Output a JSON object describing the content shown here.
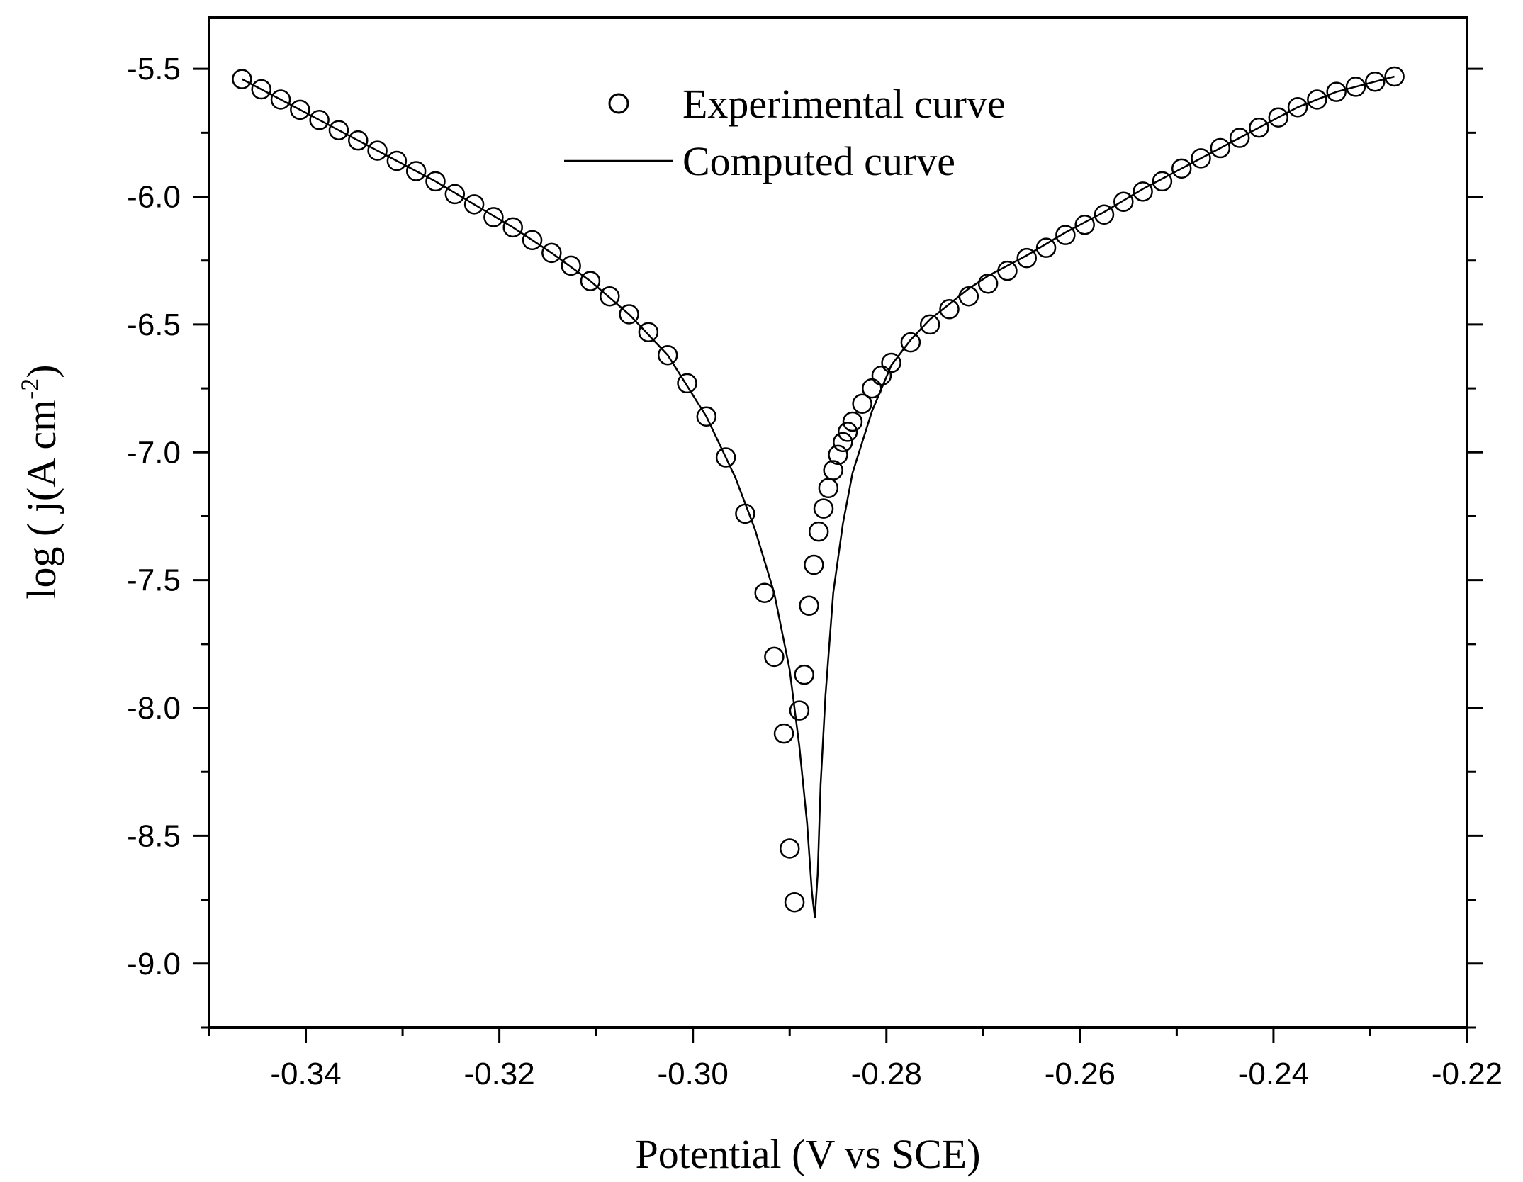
{
  "chart_data": {
    "type": "scatter",
    "title": "",
    "xlabel": "Potential (V vs SCE)",
    "ylabel_main": "log ( j(A cm",
    "ylabel_sup": "-2",
    "ylabel_close": ")",
    "xlim": [
      -0.35,
      -0.22
    ],
    "ylim": [
      -9.25,
      -5.3
    ],
    "x_ticks": [
      -0.34,
      -0.32,
      -0.3,
      -0.28,
      -0.26,
      -0.24,
      -0.22
    ],
    "x_tick_labels": [
      "-0.34",
      "-0.32",
      "-0.30",
      "-0.28",
      "-0.26",
      "-0.24",
      "-0.22"
    ],
    "y_ticks": [
      -5.5,
      -6.0,
      -6.5,
      -7.0,
      -7.5,
      -8.0,
      -8.5,
      -9.0
    ],
    "y_tick_labels": [
      "-5.5",
      "-6.0",
      "-6.5",
      "-7.0",
      "-7.5",
      "-8.0",
      "-8.5",
      "-9.0"
    ],
    "legend_position": "top-center",
    "grid": false,
    "series": [
      {
        "name": "Experimental curve",
        "style": "open-circle",
        "x": [
          -0.3466,
          -0.3446,
          -0.3426,
          -0.3406,
          -0.3386,
          -0.3366,
          -0.3346,
          -0.3326,
          -0.3306,
          -0.3286,
          -0.3266,
          -0.3246,
          -0.3226,
          -0.3206,
          -0.3186,
          -0.3166,
          -0.3146,
          -0.3126,
          -0.3106,
          -0.3086,
          -0.3066,
          -0.3046,
          -0.3026,
          -0.3006,
          -0.2986,
          -0.2966,
          -0.2946,
          -0.2926,
          -0.2916,
          -0.2906,
          -0.29,
          -0.2895,
          -0.289,
          -0.2885,
          -0.288,
          -0.2875,
          -0.287,
          -0.2865,
          -0.286,
          -0.2855,
          -0.285,
          -0.2845,
          -0.284,
          -0.2835,
          -0.2825,
          -0.2815,
          -0.2805,
          -0.2795,
          -0.2775,
          -0.2755,
          -0.2735,
          -0.2715,
          -0.2695,
          -0.2675,
          -0.2655,
          -0.2635,
          -0.2615,
          -0.2595,
          -0.2575,
          -0.2555,
          -0.2535,
          -0.2515,
          -0.2495,
          -0.2475,
          -0.2455,
          -0.2435,
          -0.2415,
          -0.2395,
          -0.2375,
          -0.2355,
          -0.2335,
          -0.2315,
          -0.2295,
          -0.2275
        ],
        "y": [
          -5.54,
          -5.58,
          -5.62,
          -5.66,
          -5.7,
          -5.74,
          -5.78,
          -5.82,
          -5.86,
          -5.9,
          -5.94,
          -5.99,
          -6.03,
          -6.08,
          -6.12,
          -6.17,
          -6.22,
          -6.27,
          -6.33,
          -6.39,
          -6.46,
          -6.53,
          -6.62,
          -6.73,
          -6.86,
          -7.02,
          -7.24,
          -7.55,
          -7.8,
          -8.1,
          -8.55,
          -8.76,
          -8.01,
          -7.87,
          -7.6,
          -7.44,
          -7.31,
          -7.22,
          -7.14,
          -7.07,
          -7.01,
          -6.96,
          -6.92,
          -6.88,
          -6.81,
          -6.75,
          -6.7,
          -6.65,
          -6.57,
          -6.5,
          -6.44,
          -6.39,
          -6.34,
          -6.29,
          -6.24,
          -6.2,
          -6.15,
          -6.11,
          -6.07,
          -6.02,
          -5.98,
          -5.94,
          -5.89,
          -5.85,
          -5.81,
          -5.77,
          -5.73,
          -5.69,
          -5.65,
          -5.62,
          -5.59,
          -5.57,
          -5.55,
          -5.53
        ]
      },
      {
        "name": "Computed curve",
        "style": "line",
        "x": [
          -0.3466,
          -0.3426,
          -0.3386,
          -0.3346,
          -0.3306,
          -0.3266,
          -0.3226,
          -0.3186,
          -0.3146,
          -0.3106,
          -0.3066,
          -0.3026,
          -0.2986,
          -0.2956,
          -0.2936,
          -0.2916,
          -0.29,
          -0.289,
          -0.2882,
          -0.2877,
          -0.2874,
          -0.2871,
          -0.2868,
          -0.2863,
          -0.2855,
          -0.2845,
          -0.2835,
          -0.2815,
          -0.2795,
          -0.2775,
          -0.2755,
          -0.2735,
          -0.2715,
          -0.2695,
          -0.2655,
          -0.2615,
          -0.2575,
          -0.2535,
          -0.2495,
          -0.2455,
          -0.2415,
          -0.2375,
          -0.2335,
          -0.2295,
          -0.2275
        ],
        "y": [
          -5.54,
          -5.62,
          -5.7,
          -5.78,
          -5.86,
          -5.94,
          -6.03,
          -6.12,
          -6.22,
          -6.33,
          -6.46,
          -6.62,
          -6.86,
          -7.1,
          -7.3,
          -7.55,
          -7.85,
          -8.15,
          -8.45,
          -8.72,
          -8.82,
          -8.65,
          -8.3,
          -7.95,
          -7.55,
          -7.28,
          -7.08,
          -6.84,
          -6.66,
          -6.56,
          -6.48,
          -6.42,
          -6.36,
          -6.31,
          -6.23,
          -6.14,
          -6.06,
          -5.97,
          -5.89,
          -5.81,
          -5.73,
          -5.65,
          -5.59,
          -5.55,
          -5.53
        ]
      }
    ]
  }
}
